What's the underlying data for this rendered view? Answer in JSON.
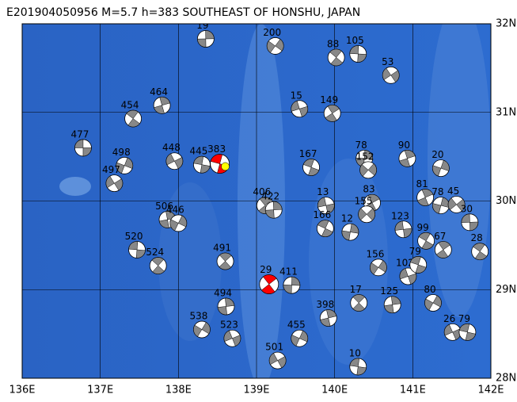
{
  "chart_data": {
    "type": "map",
    "title": "E201904050956 M=5.7 h=383 SOUTHEAST OF HONSHU, JAPAN",
    "xlim": [
      136,
      142
    ],
    "ylim": [
      28,
      32
    ],
    "xticks": [
      {
        "value": 136,
        "label": "136E"
      },
      {
        "value": 137,
        "label": "137E"
      },
      {
        "value": 138,
        "label": "138E"
      },
      {
        "value": 139,
        "label": "139E"
      },
      {
        "value": 140,
        "label": "140E"
      },
      {
        "value": 141,
        "label": "141E"
      },
      {
        "value": 142,
        "label": "142E"
      }
    ],
    "yticks": [
      {
        "value": 28,
        "label": "28N"
      },
      {
        "value": 29,
        "label": "29N"
      },
      {
        "value": 30,
        "label": "30N"
      },
      {
        "value": 31,
        "label": "31N"
      },
      {
        "value": 32,
        "label": "32N"
      }
    ],
    "grid": true,
    "epicenter": {
      "lon": 138.6,
      "lat": 30.39,
      "color": "#ffff00"
    },
    "events": [
      {
        "lon": 136.78,
        "lat": 30.6,
        "depth": 477,
        "color": "#888888"
      },
      {
        "lon": 137.42,
        "lat": 30.93,
        "depth": 454,
        "color": "#888888"
      },
      {
        "lon": 137.79,
        "lat": 31.08,
        "depth": 464,
        "color": "#888888"
      },
      {
        "lon": 137.31,
        "lat": 30.4,
        "depth": 498,
        "color": "#888888"
      },
      {
        "lon": 137.18,
        "lat": 30.2,
        "depth": 497,
        "color": "#888888"
      },
      {
        "lon": 137.47,
        "lat": 29.45,
        "depth": 520,
        "color": "#888888"
      },
      {
        "lon": 137.74,
        "lat": 29.27,
        "depth": 524,
        "color": "#888888"
      },
      {
        "lon": 137.86,
        "lat": 29.79,
        "depth": 506,
        "color": "#888888"
      },
      {
        "lon": 138.0,
        "lat": 29.75,
        "depth": 446,
        "color": "#888888"
      },
      {
        "lon": 137.95,
        "lat": 30.45,
        "depth": 448,
        "color": "#888888"
      },
      {
        "lon": 138.3,
        "lat": 30.41,
        "depth": 445,
        "color": "#888888"
      },
      {
        "lon": 138.6,
        "lat": 29.32,
        "depth": 491,
        "color": "#888888"
      },
      {
        "lon": 138.61,
        "lat": 28.81,
        "depth": 494,
        "color": "#888888"
      },
      {
        "lon": 138.3,
        "lat": 28.55,
        "depth": 538,
        "color": "#888888"
      },
      {
        "lon": 138.69,
        "lat": 28.45,
        "depth": 523,
        "color": "#888888"
      },
      {
        "lon": 138.53,
        "lat": 30.42,
        "depth": 383,
        "color": "#ff0000"
      },
      {
        "lon": 139.16,
        "lat": 29.06,
        "depth": 29,
        "color": "#ff0000"
      },
      {
        "lon": 138.35,
        "lat": 31.83,
        "depth": 19,
        "color": "#888888"
      },
      {
        "lon": 139.24,
        "lat": 31.75,
        "depth": 200,
        "color": "#888888"
      },
      {
        "lon": 139.55,
        "lat": 31.04,
        "depth": 15,
        "color": "#888888"
      },
      {
        "lon": 139.7,
        "lat": 30.38,
        "depth": 167,
        "color": "#888888"
      },
      {
        "lon": 139.97,
        "lat": 30.99,
        "depth": 149,
        "color": "#888888"
      },
      {
        "lon": 140.38,
        "lat": 30.48,
        "depth": 78,
        "color": "#888888"
      },
      {
        "lon": 140.43,
        "lat": 30.35,
        "depth": 152,
        "color": "#888888"
      },
      {
        "lon": 139.89,
        "lat": 29.95,
        "depth": 13,
        "color": "#888888"
      },
      {
        "lon": 139.88,
        "lat": 29.69,
        "depth": 166,
        "color": "#888888"
      },
      {
        "lon": 140.48,
        "lat": 29.98,
        "depth": 83,
        "color": "#888888"
      },
      {
        "lon": 140.2,
        "lat": 29.65,
        "depth": 12,
        "color": "#888888"
      },
      {
        "lon": 140.41,
        "lat": 29.85,
        "depth": 155,
        "color": "#888888"
      },
      {
        "lon": 140.88,
        "lat": 29.68,
        "depth": 123,
        "color": "#888888"
      },
      {
        "lon": 141.17,
        "lat": 29.55,
        "depth": 99,
        "color": "#888888"
      },
      {
        "lon": 141.16,
        "lat": 30.04,
        "depth": 81,
        "color": "#888888"
      },
      {
        "lon": 141.36,
        "lat": 29.95,
        "depth": 78,
        "color": "#888888"
      },
      {
        "lon": 141.56,
        "lat": 29.96,
        "depth": 45,
        "color": "#888888"
      },
      {
        "lon": 141.73,
        "lat": 29.76,
        "depth": 30,
        "color": "#888888"
      },
      {
        "lon": 141.86,
        "lat": 29.43,
        "depth": 28,
        "color": "#888888"
      },
      {
        "lon": 140.93,
        "lat": 30.48,
        "depth": 90,
        "color": "#888888"
      },
      {
        "lon": 141.36,
        "lat": 30.37,
        "depth": 20,
        "color": "#888888"
      },
      {
        "lon": 140.72,
        "lat": 31.42,
        "depth": 53,
        "color": "#888888"
      },
      {
        "lon": 140.3,
        "lat": 31.66,
        "depth": 105,
        "color": "#888888"
      },
      {
        "lon": 140.02,
        "lat": 31.62,
        "depth": 88,
        "color": "#888888"
      },
      {
        "lon": 139.92,
        "lat": 28.68,
        "depth": 398,
        "color": "#888888"
      },
      {
        "lon": 139.55,
        "lat": 28.45,
        "depth": 455,
        "color": "#888888"
      },
      {
        "lon": 139.27,
        "lat": 28.2,
        "depth": 501,
        "color": "#888888"
      },
      {
        "lon": 140.3,
        "lat": 28.13,
        "depth": 10,
        "color": "#888888"
      },
      {
        "lon": 140.31,
        "lat": 28.85,
        "depth": 17,
        "color": "#888888"
      },
      {
        "lon": 140.74,
        "lat": 28.83,
        "depth": 125,
        "color": "#888888"
      },
      {
        "lon": 141.26,
        "lat": 28.85,
        "depth": 80,
        "color": "#888888"
      },
      {
        "lon": 141.51,
        "lat": 28.52,
        "depth": 26,
        "color": "#888888"
      },
      {
        "lon": 141.7,
        "lat": 28.52,
        "depth": 79,
        "color": "#888888"
      },
      {
        "lon": 139.11,
        "lat": 29.95,
        "depth": 406,
        "color": "#888888"
      },
      {
        "lon": 139.22,
        "lat": 29.9,
        "depth": 422,
        "color": "#888888"
      },
      {
        "lon": 140.56,
        "lat": 29.25,
        "depth": 156,
        "color": "#888888"
      },
      {
        "lon": 140.94,
        "lat": 29.15,
        "depth": 102,
        "color": "#888888"
      },
      {
        "lon": 141.07,
        "lat": 29.28,
        "depth": 79,
        "color": "#888888"
      },
      {
        "lon": 141.39,
        "lat": 29.45,
        "depth": 67,
        "color": "#888888"
      },
      {
        "lon": 139.45,
        "lat": 29.05,
        "depth": 411,
        "color": "#888888"
      }
    ]
  }
}
